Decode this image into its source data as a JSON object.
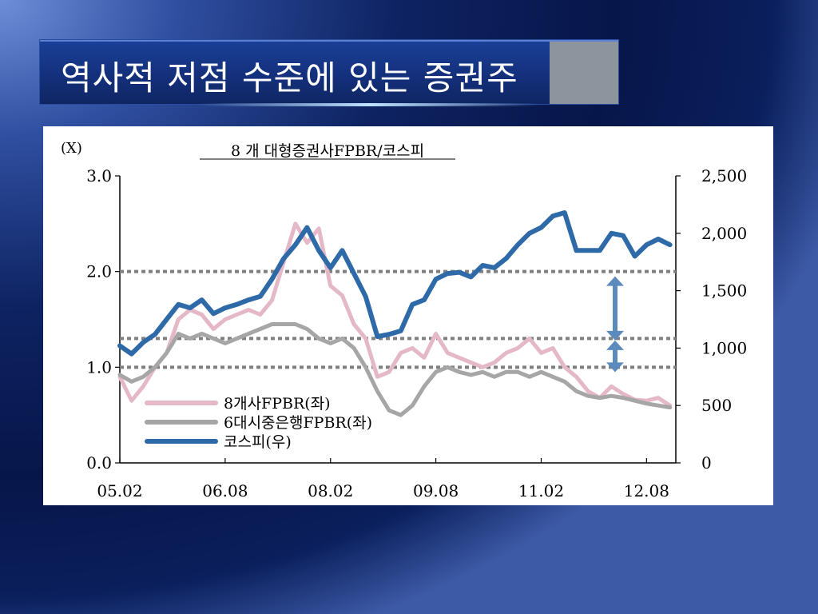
{
  "slide": {
    "title": "역사적 저점 수준에 있는 증권주"
  },
  "chart_data": {
    "type": "line",
    "title": "8 개  대형증권사FPBR/코스피",
    "y_left_unit": "(X)",
    "y_left_range": [
      0,
      3.0
    ],
    "y_left_ticks": [
      "0.0",
      "1.0",
      "2.0",
      "3.0"
    ],
    "y_right_range": [
      0,
      2500
    ],
    "y_right_ticks": [
      "0",
      "500",
      "1,000",
      "1,500",
      "2,000",
      "2,500"
    ],
    "x_range": [
      "2005-02",
      "2013-01"
    ],
    "x_ticks": [
      "05.02",
      "06.08",
      "08.02",
      "09.08",
      "11.02",
      "12.08"
    ],
    "x_tick_dates": [
      "2005-02",
      "2006-08",
      "2008-02",
      "2009-08",
      "2011-02",
      "2012-08"
    ],
    "reference_lines_left": [
      1.0,
      1.3,
      2.0
    ],
    "reference_line_color": "#808080",
    "annotation_arrows_left": [
      [
        1.95,
        1.28
      ],
      [
        1.28,
        0.95
      ]
    ],
    "arrow_color": "#5b8bbd",
    "legend_position": "bottom-left",
    "series": [
      {
        "name": "8개사FPBR(좌)",
        "axis": "left",
        "color": "#e5b8c8",
        "x": [
          "2005-02",
          "2005-04",
          "2005-06",
          "2005-08",
          "2005-10",
          "2005-12",
          "2006-02",
          "2006-04",
          "2006-06",
          "2006-08",
          "2006-10",
          "2006-12",
          "2007-02",
          "2007-04",
          "2007-06",
          "2007-08",
          "2007-10",
          "2007-12",
          "2008-02",
          "2008-04",
          "2008-06",
          "2008-08",
          "2008-10",
          "2008-12",
          "2009-02",
          "2009-04",
          "2009-06",
          "2009-08",
          "2009-10",
          "2009-12",
          "2010-02",
          "2010-04",
          "2010-06",
          "2010-08",
          "2010-10",
          "2010-12",
          "2011-02",
          "2011-04",
          "2011-06",
          "2011-08",
          "2011-10",
          "2011-12",
          "2012-02",
          "2012-04",
          "2012-06",
          "2012-08",
          "2012-10",
          "2012-12"
        ],
        "y": [
          0.9,
          0.65,
          0.8,
          1.0,
          1.15,
          1.5,
          1.6,
          1.55,
          1.4,
          1.5,
          1.55,
          1.6,
          1.55,
          1.7,
          2.1,
          2.5,
          2.3,
          2.45,
          1.85,
          1.75,
          1.45,
          1.3,
          0.9,
          0.95,
          1.15,
          1.2,
          1.1,
          1.35,
          1.15,
          1.1,
          1.05,
          1.0,
          1.05,
          1.15,
          1.2,
          1.3,
          1.15,
          1.2,
          1.0,
          0.9,
          0.75,
          0.68,
          0.8,
          0.72,
          0.66,
          0.65,
          0.68,
          0.6
        ]
      },
      {
        "name": "6대시중은행FPBR(좌)",
        "axis": "left",
        "color": "#a6a6a6",
        "x": [
          "2005-02",
          "2005-04",
          "2005-06",
          "2005-08",
          "2005-10",
          "2005-12",
          "2006-02",
          "2006-04",
          "2006-06",
          "2006-08",
          "2006-10",
          "2006-12",
          "2007-02",
          "2007-04",
          "2007-06",
          "2007-08",
          "2007-10",
          "2007-12",
          "2008-02",
          "2008-04",
          "2008-06",
          "2008-08",
          "2008-10",
          "2008-12",
          "2009-02",
          "2009-04",
          "2009-06",
          "2009-08",
          "2009-10",
          "2009-12",
          "2010-02",
          "2010-04",
          "2010-06",
          "2010-08",
          "2010-10",
          "2010-12",
          "2011-02",
          "2011-04",
          "2011-06",
          "2011-08",
          "2011-10",
          "2011-12",
          "2012-02",
          "2012-04",
          "2012-06",
          "2012-08",
          "2012-10",
          "2012-12"
        ],
        "y": [
          0.92,
          0.85,
          0.9,
          1.0,
          1.15,
          1.35,
          1.3,
          1.35,
          1.3,
          1.25,
          1.3,
          1.35,
          1.4,
          1.45,
          1.45,
          1.45,
          1.4,
          1.3,
          1.25,
          1.3,
          1.2,
          1.0,
          0.75,
          0.55,
          0.5,
          0.6,
          0.8,
          0.95,
          1.0,
          0.95,
          0.92,
          0.95,
          0.9,
          0.95,
          0.95,
          0.9,
          0.95,
          0.9,
          0.85,
          0.75,
          0.7,
          0.68,
          0.7,
          0.68,
          0.65,
          0.62,
          0.6,
          0.58
        ]
      },
      {
        "name": "코스피(우)",
        "axis": "right",
        "color": "#2f6aa8",
        "x": [
          "2005-02",
          "2005-04",
          "2005-06",
          "2005-08",
          "2005-10",
          "2005-12",
          "2006-02",
          "2006-04",
          "2006-06",
          "2006-08",
          "2006-10",
          "2006-12",
          "2007-02",
          "2007-04",
          "2007-06",
          "2007-08",
          "2007-10",
          "2007-12",
          "2008-02",
          "2008-04",
          "2008-06",
          "2008-08",
          "2008-10",
          "2008-12",
          "2009-02",
          "2009-04",
          "2009-06",
          "2009-08",
          "2009-10",
          "2009-12",
          "2010-02",
          "2010-04",
          "2010-06",
          "2010-08",
          "2010-10",
          "2010-12",
          "2011-02",
          "2011-04",
          "2011-06",
          "2011-08",
          "2011-10",
          "2011-12",
          "2012-02",
          "2012-04",
          "2012-06",
          "2012-08",
          "2012-10",
          "2012-12"
        ],
        "y": [
          1020,
          950,
          1050,
          1120,
          1250,
          1380,
          1350,
          1420,
          1300,
          1350,
          1380,
          1420,
          1450,
          1600,
          1780,
          1900,
          2050,
          1850,
          1700,
          1850,
          1650,
          1450,
          1100,
          1120,
          1150,
          1380,
          1420,
          1600,
          1650,
          1660,
          1620,
          1720,
          1700,
          1780,
          1900,
          2000,
          2050,
          2150,
          2180,
          1850,
          1850,
          1850,
          2000,
          1980,
          1800,
          1900,
          1950,
          1900
        ]
      }
    ]
  }
}
